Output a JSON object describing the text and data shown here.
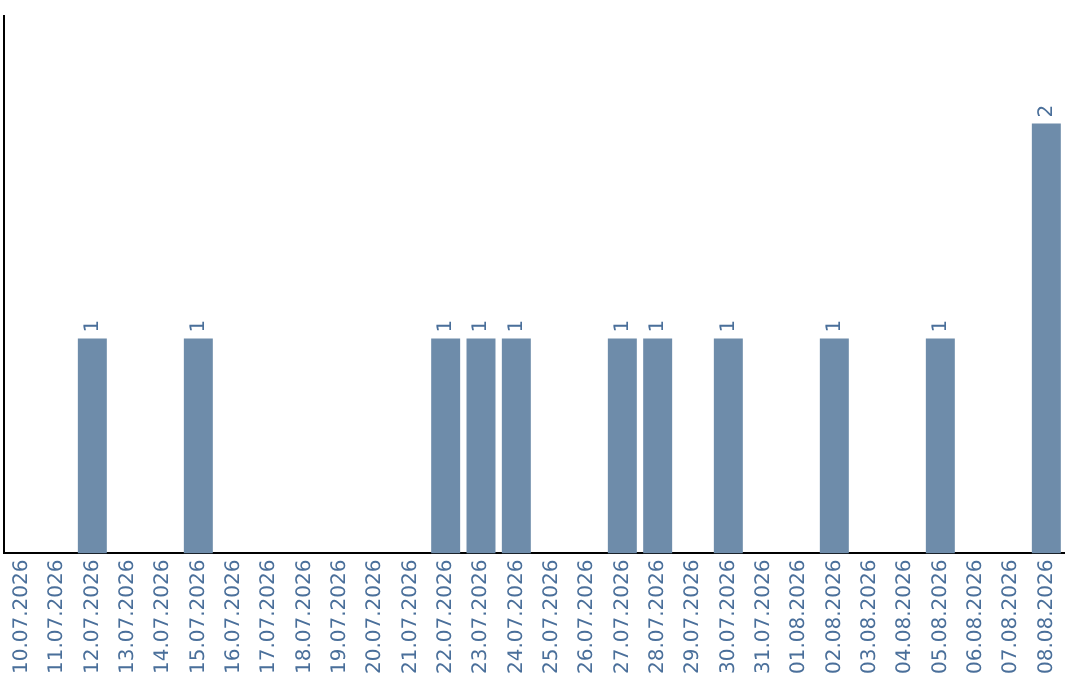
{
  "chart_data": {
    "type": "bar",
    "categories": [
      "10.07.2026",
      "11.07.2026",
      "12.07.2026",
      "13.07.2026",
      "14.07.2026",
      "15.07.2026",
      "16.07.2026",
      "17.07.2026",
      "18.07.2026",
      "19.07.2026",
      "20.07.2026",
      "21.07.2026",
      "22.07.2026",
      "23.07.2026",
      "24.07.2026",
      "25.07.2026",
      "26.07.2026",
      "27.07.2026",
      "28.07.2026",
      "29.07.2026",
      "30.07.2026",
      "31.07.2026",
      "01.08.2026",
      "02.08.2026",
      "03.08.2026",
      "04.08.2026",
      "05.08.2026",
      "06.08.2026",
      "07.08.2026",
      "08.08.2026"
    ],
    "values": [
      0,
      0,
      1,
      0,
      0,
      1,
      0,
      0,
      0,
      0,
      0,
      0,
      1,
      1,
      1,
      0,
      0,
      1,
      1,
      0,
      1,
      0,
      0,
      1,
      0,
      0,
      1,
      0,
      0,
      2
    ],
    "value_labels": [
      null,
      null,
      "1",
      null,
      null,
      "1",
      null,
      null,
      null,
      null,
      null,
      null,
      "1",
      "1",
      "1",
      null,
      null,
      "1",
      "1",
      null,
      "1",
      null,
      null,
      "1",
      null,
      null,
      "1",
      null,
      null,
      "2"
    ],
    "color": "#6e8caa",
    "tick_labels": "x",
    "grid": false,
    "legend": false
  }
}
